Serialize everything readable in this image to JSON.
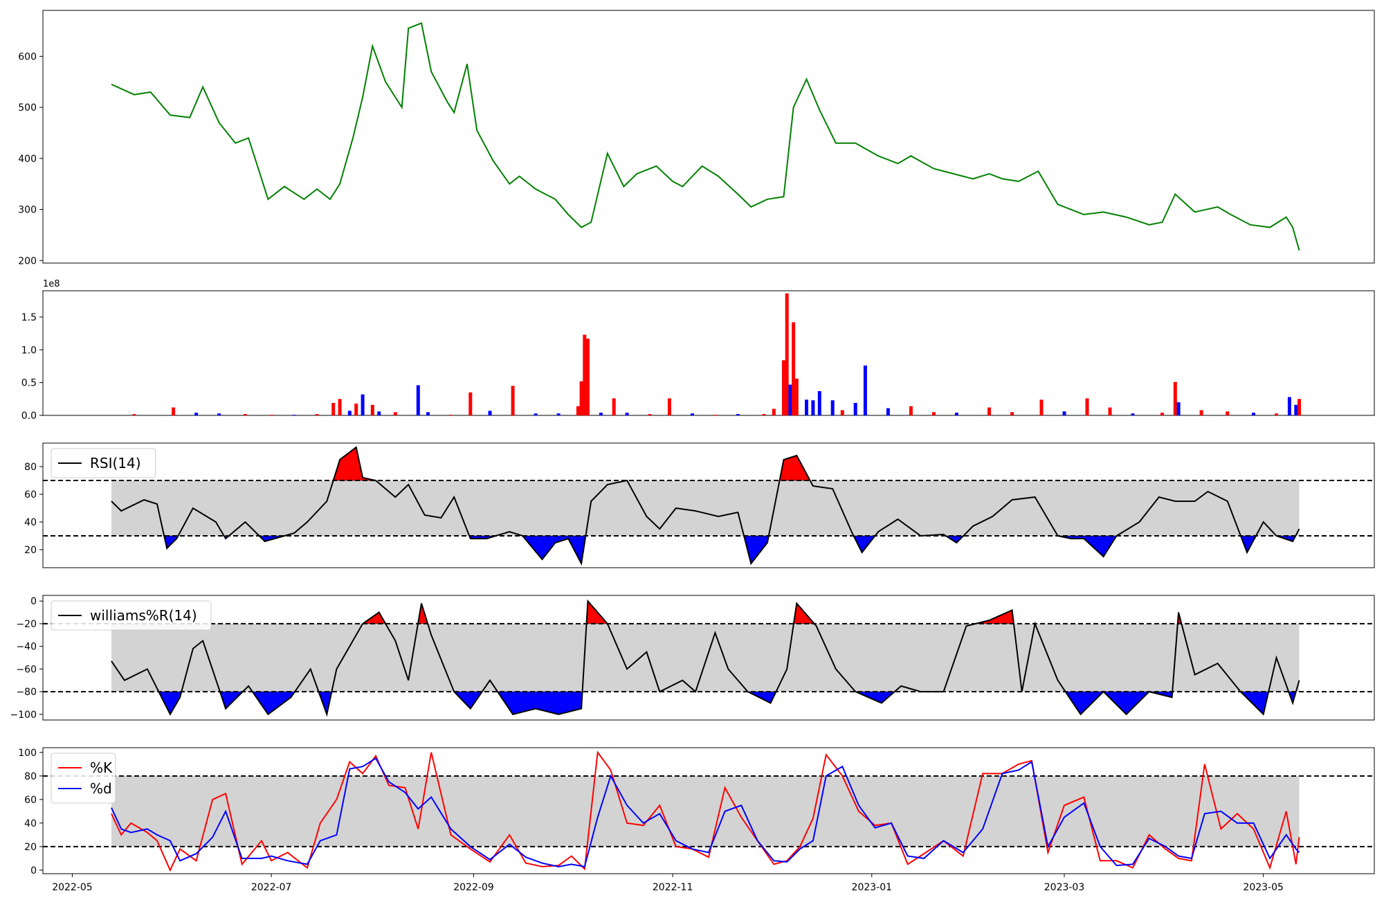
{
  "chart_data": [
    {
      "type": "line",
      "panel": "price",
      "x": [
        "2022-05-13",
        "2022-05-20",
        "2022-05-25",
        "2022-05-31",
        "2022-06-06",
        "2022-06-10",
        "2022-06-15",
        "2022-06-20",
        "2022-06-24",
        "2022-06-30",
        "2022-07-05",
        "2022-07-11",
        "2022-07-15",
        "2022-07-19",
        "2022-07-22",
        "2022-07-26",
        "2022-07-29",
        "2022-08-01",
        "2022-08-05",
        "2022-08-10",
        "2022-08-12",
        "2022-08-16",
        "2022-08-19",
        "2022-08-24",
        "2022-08-26",
        "2022-08-30",
        "2022-09-02",
        "2022-09-07",
        "2022-09-12",
        "2022-09-15",
        "2022-09-20",
        "2022-09-26",
        "2022-09-30",
        "2022-10-04",
        "2022-10-07",
        "2022-10-12",
        "2022-10-17",
        "2022-10-21",
        "2022-10-27",
        "2022-11-01",
        "2022-11-04",
        "2022-11-10",
        "2022-11-15",
        "2022-11-21",
        "2022-11-25",
        "2022-11-30",
        "2022-12-05",
        "2022-12-08",
        "2022-12-12",
        "2022-12-16",
        "2022-12-21",
        "2022-12-27",
        "2023-01-03",
        "2023-01-09",
        "2023-01-13",
        "2023-01-20",
        "2023-01-26",
        "2023-02-01",
        "2023-02-06",
        "2023-02-10",
        "2023-02-15",
        "2023-02-21",
        "2023-02-27",
        "2023-03-03",
        "2023-03-07",
        "2023-03-13",
        "2023-03-20",
        "2023-03-27",
        "2023-03-31",
        "2023-04-04",
        "2023-04-10",
        "2023-04-17",
        "2023-04-21",
        "2023-04-27",
        "2023-05-03",
        "2023-05-08",
        "2023-05-10",
        "2023-05-12"
      ],
      "series": [
        {
          "values": [
            545,
            525,
            530,
            485,
            480,
            540,
            470,
            430,
            440,
            320,
            345,
            320,
            340,
            320,
            350,
            440,
            520,
            620,
            550,
            500,
            655,
            665,
            570,
            510,
            490,
            585,
            455,
            395,
            350,
            365,
            340,
            320,
            290,
            265,
            275,
            410,
            345,
            370,
            385,
            355,
            345,
            385,
            365,
            330,
            305,
            320,
            325,
            500,
            555,
            495,
            430,
            430,
            405,
            390,
            405,
            380,
            370,
            360,
            370,
            360,
            355,
            375,
            310,
            300,
            290,
            295,
            285,
            270,
            275,
            330,
            295,
            305,
            290,
            270,
            265,
            285,
            265,
            220
          ],
          "color": "#008000"
        }
      ],
      "ylim": [
        195,
        690
      ],
      "yticks": [
        "200",
        "300",
        "400",
        "500",
        "600"
      ]
    },
    {
      "type": "bar",
      "panel": "volume",
      "offset_text": "1e8",
      "x": [
        "2022-05-20",
        "2022-06-01",
        "2022-06-08",
        "2022-06-15",
        "2022-06-23",
        "2022-07-01",
        "2022-07-08",
        "2022-07-15",
        "2022-07-20",
        "2022-07-22",
        "2022-07-25",
        "2022-07-27",
        "2022-07-29",
        "2022-08-01",
        "2022-08-03",
        "2022-08-08",
        "2022-08-15",
        "2022-08-18",
        "2022-08-25",
        "2022-08-31",
        "2022-09-06",
        "2022-09-13",
        "2022-09-20",
        "2022-09-27",
        "2022-10-03",
        "2022-10-04",
        "2022-10-05",
        "2022-10-06",
        "2022-10-10",
        "2022-10-14",
        "2022-10-18",
        "2022-10-25",
        "2022-10-31",
        "2022-11-07",
        "2022-11-14",
        "2022-11-21",
        "2022-11-29",
        "2022-12-02",
        "2022-12-05",
        "2022-12-06",
        "2022-12-07",
        "2022-12-08",
        "2022-12-09",
        "2022-12-12",
        "2022-12-14",
        "2022-12-16",
        "2022-12-20",
        "2022-12-23",
        "2022-12-27",
        "2022-12-30",
        "2023-01-06",
        "2023-01-13",
        "2023-01-20",
        "2023-01-27",
        "2023-02-06",
        "2023-02-13",
        "2023-02-22",
        "2023-03-01",
        "2023-03-08",
        "2023-03-15",
        "2023-03-22",
        "2023-03-31",
        "2023-04-04",
        "2023-04-05",
        "2023-04-12",
        "2023-04-20",
        "2023-04-28",
        "2023-05-05",
        "2023-05-09",
        "2023-05-11",
        "2023-05-12"
      ],
      "series": [
        {
          "name": "volume",
          "values": [
            0.02,
            0.12,
            0.04,
            0.03,
            0.02,
            0.01,
            0.01,
            0.02,
            0.19,
            0.25,
            0.07,
            0.18,
            0.32,
            0.16,
            0.06,
            0.05,
            0.46,
            0.05,
            0.01,
            0.35,
            0.07,
            0.45,
            0.03,
            0.03,
            0.14,
            0.52,
            1.23,
            1.17,
            0.04,
            0.26,
            0.04,
            0.02,
            0.26,
            0.03,
            0.01,
            0.02,
            0.02,
            0.1,
            0.84,
            1.86,
            0.47,
            1.42,
            0.56,
            0.24,
            0.23,
            0.37,
            0.23,
            0.08,
            0.19,
            0.76,
            0.11,
            0.14,
            0.05,
            0.04,
            0.12,
            0.05,
            0.24,
            0.06,
            0.26,
            0.12,
            0.03,
            0.04,
            0.51,
            0.2,
            0.08,
            0.06,
            0.04,
            0.03,
            0.28,
            0.16,
            0.25
          ],
          "colors": [
            "red",
            "red",
            "blue",
            "blue",
            "red",
            "red",
            "blue",
            "red",
            "red",
            "red",
            "blue",
            "red",
            "blue",
            "red",
            "blue",
            "red",
            "blue",
            "blue",
            "red",
            "red",
            "blue",
            "red",
            "blue",
            "blue",
            "red",
            "red",
            "red",
            "red",
            "blue",
            "red",
            "blue",
            "red",
            "red",
            "blue",
            "red",
            "blue",
            "red",
            "red",
            "red",
            "red",
            "blue",
            "red",
            "red",
            "blue",
            "blue",
            "blue",
            "blue",
            "red",
            "blue",
            "blue",
            "blue",
            "red",
            "red",
            "blue",
            "red",
            "red",
            "red",
            "blue",
            "red",
            "red",
            "blue",
            "red",
            "red",
            "blue",
            "red",
            "red",
            "blue",
            "red",
            "blue",
            "blue",
            "red"
          ]
        }
      ],
      "ylim": [
        0,
        1.9
      ],
      "yticks": [
        "0.0",
        "0.5",
        "1.0",
        "1.5"
      ]
    },
    {
      "type": "line",
      "panel": "rsi",
      "x": [
        "2022-05-13",
        "2022-05-16",
        "2022-05-23",
        "2022-05-27",
        "2022-05-30",
        "2022-06-02",
        "2022-06-07",
        "2022-06-14",
        "2022-06-17",
        "2022-06-23",
        "2022-06-29",
        "2022-07-05",
        "2022-07-08",
        "2022-07-12",
        "2022-07-18",
        "2022-07-22",
        "2022-07-27",
        "2022-07-29",
        "2022-08-02",
        "2022-08-08",
        "2022-08-12",
        "2022-08-17",
        "2022-08-22",
        "2022-08-26",
        "2022-08-31",
        "2022-09-05",
        "2022-09-12",
        "2022-09-16",
        "2022-09-22",
        "2022-09-26",
        "2022-09-30",
        "2022-10-04",
        "2022-10-07",
        "2022-10-12",
        "2022-10-18",
        "2022-10-24",
        "2022-10-28",
        "2022-11-02",
        "2022-11-08",
        "2022-11-15",
        "2022-11-21",
        "2022-11-25",
        "2022-11-30",
        "2022-12-05",
        "2022-12-09",
        "2022-12-14",
        "2022-12-20",
        "2022-12-26",
        "2022-12-29",
        "2023-01-03",
        "2023-01-09",
        "2023-01-16",
        "2023-01-23",
        "2023-01-27",
        "2023-02-01",
        "2023-02-07",
        "2023-02-13",
        "2023-02-20",
        "2023-02-27",
        "2023-03-03",
        "2023-03-07",
        "2023-03-13",
        "2023-03-17",
        "2023-03-24",
        "2023-03-30",
        "2023-04-04",
        "2023-04-10",
        "2023-04-14",
        "2023-04-20",
        "2023-04-26",
        "2023-05-01",
        "2023-05-05",
        "2023-05-10",
        "2023-05-12"
      ],
      "series": [
        {
          "name": "RSI(14)",
          "values": [
            55,
            48,
            56,
            53,
            21,
            28,
            50,
            40,
            28,
            40,
            26,
            30,
            32,
            40,
            55,
            85,
            94,
            72,
            70,
            58,
            67,
            45,
            43,
            58,
            28,
            28,
            33,
            30,
            13,
            25,
            28,
            10,
            55,
            67,
            70,
            44,
            35,
            50,
            48,
            44,
            47,
            10,
            25,
            85,
            88,
            66,
            64,
            32,
            18,
            33,
            42,
            30,
            31,
            25,
            37,
            44,
            56,
            58,
            30,
            28,
            28,
            15,
            30,
            40,
            58,
            55,
            55,
            62,
            55,
            18,
            40,
            30,
            26,
            35
          ],
          "color": "#000000"
        }
      ],
      "ylim": [
        7,
        97
      ],
      "yticks": [
        "20",
        "40",
        "60",
        "80"
      ],
      "bands": [
        30,
        70
      ]
    },
    {
      "type": "line",
      "panel": "williams",
      "x": [
        "2022-05-13",
        "2022-05-17",
        "2022-05-24",
        "2022-05-31",
        "2022-06-03",
        "2022-06-07",
        "2022-06-10",
        "2022-06-17",
        "2022-06-24",
        "2022-06-30",
        "2022-07-07",
        "2022-07-13",
        "2022-07-18",
        "2022-07-21",
        "2022-07-25",
        "2022-07-29",
        "2022-08-03",
        "2022-08-08",
        "2022-08-12",
        "2022-08-16",
        "2022-08-19",
        "2022-08-26",
        "2022-08-31",
        "2022-09-06",
        "2022-09-13",
        "2022-09-20",
        "2022-09-27",
        "2022-10-04",
        "2022-10-06",
        "2022-10-12",
        "2022-10-18",
        "2022-10-24",
        "2022-10-28",
        "2022-11-04",
        "2022-11-08",
        "2022-11-14",
        "2022-11-18",
        "2022-11-24",
        "2022-12-01",
        "2022-12-06",
        "2022-12-09",
        "2022-12-15",
        "2022-12-21",
        "2022-12-27",
        "2023-01-04",
        "2023-01-10",
        "2023-01-16",
        "2023-01-23",
        "2023-01-30",
        "2023-02-06",
        "2023-02-13",
        "2023-02-16",
        "2023-02-20",
        "2023-02-27",
        "2023-03-06",
        "2023-03-13",
        "2023-03-20",
        "2023-03-27",
        "2023-04-03",
        "2023-04-05",
        "2023-04-10",
        "2023-04-17",
        "2023-04-24",
        "2023-05-01",
        "2023-05-05",
        "2023-05-10",
        "2023-05-12"
      ],
      "series": [
        {
          "name": "williams%R(14)",
          "values": [
            -53,
            -70,
            -60,
            -100,
            -85,
            -42,
            -35,
            -95,
            -75,
            -100,
            -85,
            -60,
            -100,
            -60,
            -40,
            -20,
            -10,
            -35,
            -70,
            -2,
            -30,
            -80,
            -95,
            -70,
            -100,
            -95,
            -100,
            -95,
            0,
            -20,
            -60,
            -45,
            -80,
            -70,
            -80,
            -28,
            -60,
            -80,
            -90,
            -60,
            -2,
            -22,
            -60,
            -80,
            -90,
            -75,
            -80,
            -80,
            -22,
            -17,
            -8,
            -80,
            -20,
            -70,
            -100,
            -80,
            -100,
            -80,
            -85,
            -10,
            -65,
            -55,
            -80,
            -100,
            -50,
            -90,
            -70
          ],
          "color": "#000000"
        }
      ],
      "ylim": [
        -105,
        5
      ],
      "yticks": [
        "0",
        "−20",
        "−40",
        "−60",
        "−80",
        "−100"
      ],
      "bands": [
        -80,
        -20
      ]
    },
    {
      "type": "line",
      "panel": "stochastic",
      "x": [
        "2022-05-13",
        "2022-05-16",
        "2022-05-19",
        "2022-05-24",
        "2022-05-27",
        "2022-05-31",
        "2022-06-03",
        "2022-06-08",
        "2022-06-13",
        "2022-06-17",
        "2022-06-22",
        "2022-06-28",
        "2022-07-01",
        "2022-07-06",
        "2022-07-12",
        "2022-07-16",
        "2022-07-21",
        "2022-07-25",
        "2022-07-29",
        "2022-08-02",
        "2022-08-06",
        "2022-08-11",
        "2022-08-15",
        "2022-08-19",
        "2022-08-25",
        "2022-08-31",
        "2022-09-06",
        "2022-09-12",
        "2022-09-17",
        "2022-09-22",
        "2022-09-27",
        "2022-10-01",
        "2022-10-05",
        "2022-10-09",
        "2022-10-13",
        "2022-10-18",
        "2022-10-23",
        "2022-10-28",
        "2022-11-02",
        "2022-11-07",
        "2022-11-12",
        "2022-11-17",
        "2022-11-22",
        "2022-11-27",
        "2022-12-02",
        "2022-12-06",
        "2022-12-10",
        "2022-12-14",
        "2022-12-18",
        "2022-12-23",
        "2022-12-28",
        "2023-01-02",
        "2023-01-07",
        "2023-01-12",
        "2023-01-17",
        "2023-01-23",
        "2023-01-29",
        "2023-02-04",
        "2023-02-10",
        "2023-02-15",
        "2023-02-19",
        "2023-02-24",
        "2023-03-01",
        "2023-03-07",
        "2023-03-12",
        "2023-03-17",
        "2023-03-22",
        "2023-03-27",
        "2023-04-01",
        "2023-04-05",
        "2023-04-09",
        "2023-04-13",
        "2023-04-18",
        "2023-04-23",
        "2023-04-28",
        "2023-05-03",
        "2023-05-08",
        "2023-05-11",
        "2023-05-12"
      ],
      "series": [
        {
          "name": "%K",
          "values": [
            48,
            30,
            40,
            32,
            25,
            0,
            18,
            8,
            60,
            65,
            5,
            25,
            8,
            15,
            2,
            40,
            60,
            92,
            82,
            97,
            72,
            70,
            35,
            100,
            30,
            18,
            7,
            30,
            6,
            3,
            4,
            12,
            1,
            100,
            85,
            40,
            38,
            55,
            20,
            18,
            11,
            70,
            45,
            25,
            5,
            8,
            20,
            44,
            98,
            80,
            50,
            38,
            40,
            5,
            14,
            25,
            12,
            82,
            82,
            90,
            93,
            15,
            55,
            62,
            8,
            8,
            2,
            30,
            18,
            10,
            8,
            90,
            35,
            48,
            35,
            2,
            50,
            5,
            28
          ],
          "color": "#ff0000"
        },
        {
          "name": "%d",
          "values": [
            53,
            35,
            32,
            35,
            30,
            25,
            8,
            14,
            28,
            50,
            10,
            10,
            12,
            8,
            5,
            25,
            30,
            86,
            88,
            95,
            75,
            66,
            52,
            62,
            35,
            20,
            9,
            22,
            11,
            6,
            3,
            5,
            3,
            45,
            80,
            55,
            40,
            48,
            25,
            18,
            15,
            50,
            55,
            25,
            8,
            7,
            18,
            25,
            80,
            88,
            55,
            36,
            40,
            12,
            10,
            25,
            15,
            35,
            82,
            85,
            92,
            20,
            45,
            57,
            20,
            4,
            5,
            27,
            20,
            12,
            10,
            48,
            50,
            40,
            40,
            10,
            30,
            18,
            15
          ],
          "color": "#0000ff"
        }
      ],
      "ylim": [
        -3,
        104
      ],
      "yticks": [
        "0",
        "20",
        "40",
        "60",
        "80",
        "100"
      ],
      "bands": [
        20,
        80
      ]
    }
  ],
  "xaxis": {
    "ticks": [
      "2022-05",
      "2022-07",
      "2022-09",
      "2022-11",
      "2023-01",
      "2023-03",
      "2023-05"
    ],
    "range": [
      "2022-04-22",
      "2023-06-04"
    ]
  },
  "colors": {
    "price_line": "#008000",
    "overbought_fill": "#ff0000",
    "oversold_fill": "#0000ff",
    "neutral_band": "#d3d3d3"
  }
}
